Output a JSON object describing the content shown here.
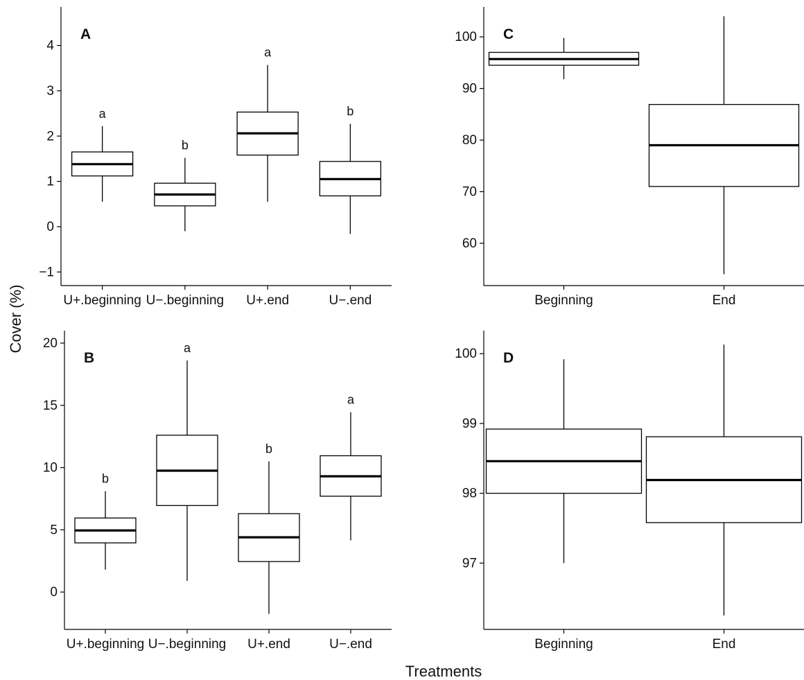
{
  "figure": {
    "ylabel": "Cover (%)",
    "xlabel": "Treatments"
  },
  "chart_data": [
    {
      "panel": "A",
      "type": "boxplot",
      "categories": [
        "U+.beginning",
        "U−.beginning",
        "U+.end",
        "U−.end"
      ],
      "ylim": [
        -1.3,
        4.85
      ],
      "yticks": [
        -1,
        0,
        1,
        2,
        3,
        4
      ],
      "grid": false,
      "boxes": [
        {
          "min": 0.55,
          "q1": 1.12,
          "median": 1.38,
          "q3": 1.65,
          "max": 2.22,
          "letter": "a"
        },
        {
          "min": -0.1,
          "q1": 0.46,
          "median": 0.71,
          "q3": 0.96,
          "max": 1.52,
          "letter": "b"
        },
        {
          "min": 0.55,
          "q1": 1.58,
          "median": 2.06,
          "q3": 2.53,
          "max": 3.57,
          "letter": "a"
        },
        {
          "min": -0.16,
          "q1": 0.68,
          "median": 1.05,
          "q3": 1.44,
          "max": 2.27,
          "letter": "b"
        }
      ]
    },
    {
      "panel": "B",
      "type": "boxplot",
      "categories": [
        "U+.beginning",
        "U−.beginning",
        "U+.end",
        "U−.end"
      ],
      "ylim": [
        -3.0,
        21.0
      ],
      "yticks": [
        0,
        5,
        10,
        15,
        20
      ],
      "grid": false,
      "boxes": [
        {
          "min": 1.8,
          "q1": 3.95,
          "median": 4.95,
          "q3": 5.95,
          "max": 8.1,
          "letter": "b"
        },
        {
          "min": 0.9,
          "q1": 6.95,
          "median": 9.75,
          "q3": 12.6,
          "max": 18.6,
          "letter": "a"
        },
        {
          "min": -1.75,
          "q1": 2.45,
          "median": 4.4,
          "q3": 6.3,
          "max": 10.5,
          "letter": "b"
        },
        {
          "min": 4.15,
          "q1": 7.7,
          "median": 9.3,
          "q3": 10.95,
          "max": 14.45,
          "letter": "a"
        }
      ]
    },
    {
      "panel": "C",
      "type": "boxplot",
      "categories": [
        "Beginning",
        "End"
      ],
      "ylim": [
        51.8,
        105.8
      ],
      "yticks": [
        60,
        70,
        80,
        90,
        100
      ],
      "grid": false,
      "boxes": [
        {
          "min": 91.8,
          "q1": 94.5,
          "median": 95.7,
          "q3": 97.0,
          "max": 99.8
        },
        {
          "min": 54.0,
          "q1": 71.0,
          "median": 79.0,
          "q3": 86.9,
          "max": 104.0
        }
      ]
    },
    {
      "panel": "D",
      "type": "boxplot",
      "categories": [
        "Beginning",
        "End"
      ],
      "ylim": [
        96.05,
        100.33
      ],
      "yticks": [
        97,
        98,
        99,
        100
      ],
      "grid": false,
      "boxes": [
        {
          "min": 97.0,
          "q1": 98.0,
          "median": 98.46,
          "q3": 98.92,
          "max": 99.92
        },
        {
          "min": 96.25,
          "q1": 97.58,
          "median": 98.19,
          "q3": 98.81,
          "max": 100.13
        }
      ]
    }
  ]
}
